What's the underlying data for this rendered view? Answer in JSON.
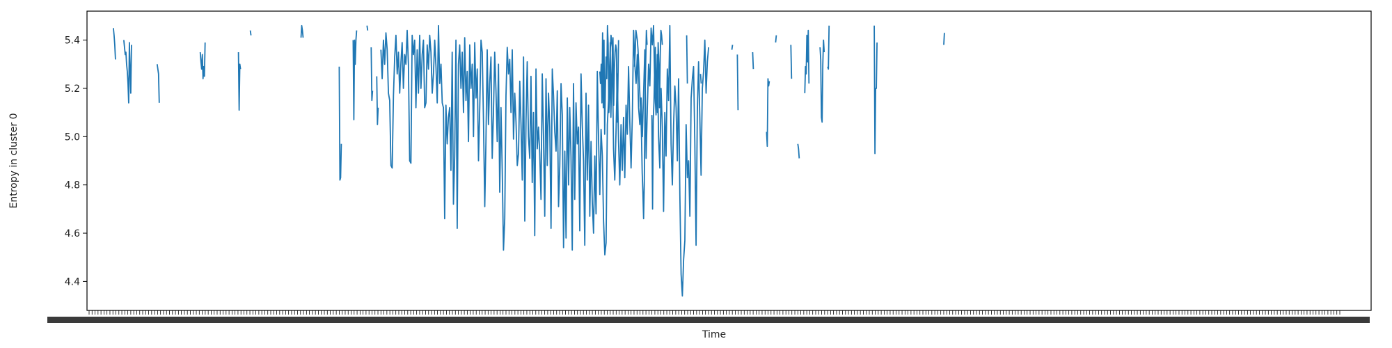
{
  "chart_data": {
    "type": "line",
    "title": "",
    "xlabel": "Time",
    "ylabel": "Entropy in cluster 0",
    "ylim": [
      4.28,
      5.52
    ],
    "yticks": [
      4.4,
      4.6,
      4.8,
      5.0,
      5.2,
      5.4
    ],
    "ytick_labels": [
      "4.4",
      "4.6",
      "4.8",
      "5.0",
      "5.2",
      "5.4"
    ],
    "x_tick_labels_note": "dense overlapping date tick labels, illegible",
    "grid": false,
    "legend": "none",
    "series_color": "#1f77b4",
    "n_points": 1800,
    "segments": [
      {
        "start": 35,
        "values": [
          5.45,
          5.42,
          5.38,
          5.32
        ]
      },
      {
        "start": 50,
        "values": [
          5.4,
          5.37,
          5.34,
          5.35,
          5.3,
          5.27,
          5.22,
          5.14,
          5.39,
          5.27,
          5.18,
          5.38
        ]
      },
      {
        "start": 98,
        "values": [
          5.3,
          5.28,
          5.26,
          5.14
        ]
      },
      {
        "start": 160,
        "values": [
          5.35,
          5.31,
          5.28,
          5.34,
          5.24,
          5.29,
          5.25,
          5.39
        ]
      },
      {
        "start": 215,
        "values": [
          5.35,
          5.11,
          5.3,
          5.28
        ]
      },
      {
        "start": 232,
        "values": [
          5.44,
          5.42
        ]
      },
      {
        "start": 305,
        "values": [
          5.41,
          5.46,
          5.44,
          5.41
        ]
      },
      {
        "start": 400,
        "values": [
          5.46,
          5.44
        ]
      },
      {
        "start": 360,
        "values": [
          5.29,
          4.82,
          4.83,
          4.97
        ]
      },
      {
        "start": 380,
        "values": [
          5.4,
          5.07,
          5.4,
          5.3,
          5.4,
          5.44
        ]
      },
      {
        "start": 406,
        "values": [
          5.37,
          5.15,
          5.19
        ]
      },
      {
        "start": 414,
        "values": [
          5.25,
          5.05,
          5.12
        ]
      },
      {
        "start": 420,
        "values": [
          5.36,
          5.24,
          5.4,
          5.3,
          5.43,
          5.36,
          5.18,
          5.15,
          4.88,
          4.87,
          5.17,
          5.33,
          5.42,
          5.26,
          5.35,
          5.18,
          5.31,
          5.39,
          5.2,
          5.34,
          5.3,
          5.44,
          5.3,
          4.9,
          4.89,
          5.42,
          5.34,
          5.4,
          5.12,
          5.36,
          5.18,
          5.42,
          5.2,
          5.34,
          5.4,
          5.12,
          5.14,
          5.38,
          5.28,
          5.42,
          5.35,
          5.18,
          5.26,
          5.4,
          5.29,
          5.14,
          5.46,
          5.22,
          5.3,
          5.14,
          5.12,
          4.66,
          5.13,
          4.97,
          5.08,
          5.12,
          4.86,
          5.35,
          4.72,
          4.92,
          5.4,
          4.62,
          5.3,
          5.38,
          5.2,
          5.35,
          5.1,
          5.41,
          5.15,
          5.27,
          4.98,
          5.38,
          5.2,
          5.3,
          5.0,
          5.39,
          5.16,
          5.28,
          4.9,
          5.12,
          5.4,
          5.35,
          5.06,
          4.71,
          4.98,
          5.36,
          5.05,
          5.22,
          5.33,
          4.91,
          5.1,
          5.35,
          5.19,
          4.98,
          5.3,
          4.77,
          5.12,
          4.86,
          4.53,
          4.66,
          5.17,
          5.37,
          5.26,
          5.32,
          5.1,
          5.36,
          4.99,
          5.18,
          5.06,
          4.88,
          4.93,
          5.23,
          5.05,
          4.82,
          5.33,
          4.65,
          5.07,
          5.31,
          5.0,
          4.91,
          5.25,
          4.81,
          5.1,
          4.59,
          5.28,
          4.95,
          5.04,
          4.93,
          4.74,
          5.26,
          5.0,
          4.67,
          5.24,
          4.88,
          5.18,
          5.04,
          4.62,
          5.28,
          5.17,
          5.02,
          4.94,
          5.19,
          4.71,
          4.88,
          5.22,
          5.09,
          4.54,
          4.94,
          4.58,
          5.16,
          4.8,
          5.12,
          4.92,
          4.53,
          5.22,
          4.74,
          5.14,
          4.97,
          5.04,
          4.61,
          5.26,
          5.05,
          4.9,
          4.55,
          5.18,
          4.82,
          5.13,
          4.67,
          4.98,
          4.73,
          4.6,
          4.92,
          4.68,
          5.27,
          4.99,
          4.76,
          5.03,
          4.92,
          4.65,
          4.51,
          4.56,
          5.05,
          5.15,
          5.32,
          5.42,
          5.37,
          4.95,
          4.82,
          5.02,
          5.26,
          4.98,
          4.8,
          5.05,
          4.86,
          5.08,
          4.83,
          5.13,
          5.01,
          5.29,
          5.06,
          4.87,
          5.08,
          5.44,
          5.3,
          5.22,
          5.34,
          5.12,
          5.05,
          5.16,
          5.0,
          5.18,
          5.36,
          4.91,
          5.12,
          5.3,
          5.21,
          5.45,
          5.38,
          5.46,
          5.2,
          5.09,
          5.34,
          5.0,
          4.87,
          5.2,
          5.04,
          4.69,
          5.1,
          4.92,
          5.28,
          5.15,
          5.46,
          4.97,
          4.8,
          5.05,
          5.21,
          5.12,
          4.9,
          5.24,
          4.76,
          4.43,
          4.34,
          4.49,
          4.57,
          5.05,
          4.83,
          4.9,
          4.67,
          5.16,
          5.24,
          5.29,
          4.98,
          4.55,
          5.1,
          5.31,
          5.08,
          4.84,
          5.2,
          5.27,
          5.4,
          5.18,
          5.31,
          5.37
        ]
      }
    ],
    "late_segments": [
      {
        "start": 735,
        "values": [
          5.27,
          5.22,
          5.3,
          5.14,
          5.43,
          5.12,
          5.4,
          5.01,
          5.2,
          5.33,
          5.24,
          5.46,
          5.38,
          5.1,
          5.17,
          5.39,
          5.08,
          5.23,
          5.33,
          5.41,
          5.13,
          5.28,
          5.35,
          5.38,
          5.36,
          5.06,
          5.19,
          5.4
        ]
      },
      {
        "start": 785,
        "values": [
          5.29,
          5.35,
          5.44,
          5.42,
          5.4,
          5.36,
          5.3,
          5.22,
          5.15,
          5.1,
          5.0,
          4.85,
          4.77,
          4.66,
          4.8,
          5.12,
          5.3,
          5.44,
          5.38
        ]
      },
      {
        "start": 810,
        "values": [
          5.09,
          4.7,
          5.07,
          5.14,
          5.28,
          5.37,
          5.17,
          5.26,
          5.1,
          5.39,
          5.3,
          5.12,
          5.34,
          5.44,
          5.42,
          5.38
        ]
      },
      {
        "start": 860,
        "values": [
          5.42,
          5.22
        ]
      },
      {
        "start": 880,
        "values": [
          5.26,
          5.22
        ]
      },
      {
        "start": 925,
        "values": [
          5.36,
          5.38
        ]
      },
      {
        "start": 933,
        "values": [
          5.34,
          5.11
        ]
      },
      {
        "start": 955,
        "values": [
          5.35,
          5.28
        ]
      },
      {
        "start": 975,
        "values": [
          5.02,
          4.96,
          5.24,
          5.21,
          5.23
        ]
      },
      {
        "start": 988,
        "values": [
          5.39,
          5.42
        ]
      },
      {
        "start": 1010,
        "values": [
          5.38,
          5.24
        ]
      },
      {
        "start": 1020,
        "values": [
          4.97,
          4.95,
          4.91
        ]
      },
      {
        "start": 1030,
        "values": [
          5.18,
          5.29,
          5.26,
          5.42,
          5.31,
          5.44,
          5.22
        ]
      },
      {
        "start": 1052,
        "values": [
          5.37,
          5.32,
          5.08,
          5.06,
          5.3,
          5.4,
          5.35
        ]
      },
      {
        "start": 1063,
        "values": [
          5.29,
          5.28,
          5.46
        ]
      },
      {
        "start": 1130,
        "values": [
          5.46,
          4.93,
          5.2,
          5.2,
          5.39
        ]
      },
      {
        "start": 1230,
        "values": [
          5.38,
          5.43
        ]
      }
    ]
  }
}
